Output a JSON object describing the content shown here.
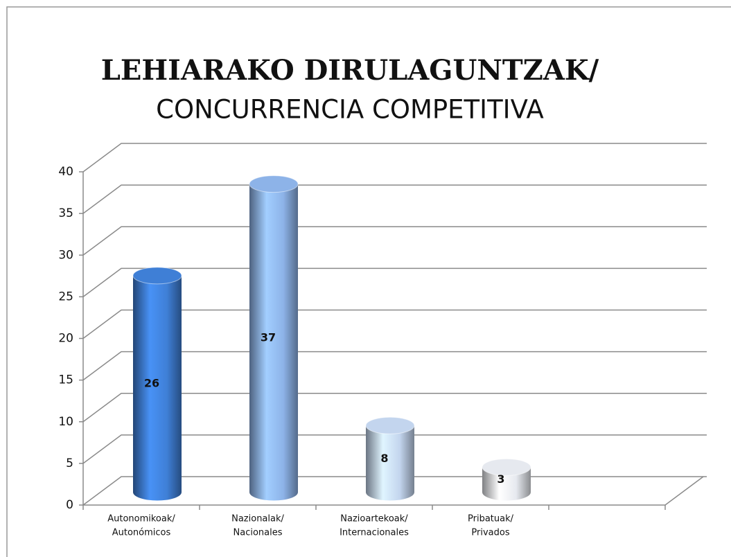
{
  "chart_data": {
    "type": "bar3d",
    "title": [
      "LEHIARAKO DIRULAGUNTZAK/",
      "CONCURRENCIA COMPETITIVA"
    ],
    "categories": [
      [
        "Autonomikoak/",
        "Autonómicos"
      ],
      [
        "Nazionalak/",
        "Nacionales"
      ],
      [
        "Nazioartekoak/",
        "Internacionales"
      ],
      [
        "Pribatuak/",
        "Privados"
      ],
      null
    ],
    "values": [
      26,
      37,
      8,
      3,
      null
    ],
    "colors": [
      "#3f7fd6",
      "#8db3e8",
      "#c3d5ee",
      "#e6e9ef",
      null
    ],
    "ylim": [
      0,
      40
    ],
    "yticks": [
      0,
      5,
      10,
      15,
      20,
      25,
      30,
      35,
      40
    ],
    "grid": true
  }
}
